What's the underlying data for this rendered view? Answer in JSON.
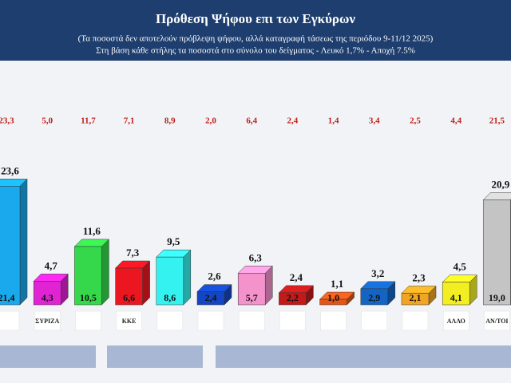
{
  "chart_data": {
    "type": "bar3d",
    "title": "Πρόθεση Ψήφου επι των Εγκύρων",
    "subtitle": "(Τα ποσοστά δεν αποτελούν πρόβλεψη ψήφου, αλλά καταγραφή τάσεως της περιόδου  9-11/12 2025)",
    "note": "Στη βάση κάθε στήλης τα ποσοστά στο σύνολο του δείγματος - Λευκό 1,7% - Αποχή 7.5%",
    "categories": [
      null,
      "ΣΥΡΙΖΑ",
      null,
      "ΚΚΕ",
      null,
      null,
      null,
      null,
      null,
      null,
      null,
      "ΑΛΛΟ",
      "ΑΝ/ΤΟΙ"
    ],
    "values": [
      23.6,
      4.7,
      11.6,
      7.3,
      9.5,
      2.6,
      6.3,
      2.4,
      1.1,
      3.2,
      2.3,
      4.5,
      20.9
    ],
    "value_labels": [
      "23,6",
      "4,7",
      "11,6",
      "7,3",
      "9,5",
      "2,6",
      "6,3",
      "2,4",
      "1,1",
      "3,2",
      "2,3",
      "4,5",
      "20,9"
    ],
    "sample_values": [
      21.4,
      4.3,
      10.5,
      6.6,
      8.6,
      2.4,
      5.7,
      2.2,
      1.0,
      2.9,
      2.1,
      4.1,
      19.0
    ],
    "sample_value_labels": [
      "21,4",
      "4,3",
      "10,5",
      "6,6",
      "8,6",
      "2,4",
      "5,7",
      "2,2",
      "1,0",
      "2,9",
      "2,1",
      "4,1",
      "19,0"
    ],
    "previous_values": [
      23.3,
      5.0,
      11.7,
      7.1,
      8.9,
      2.0,
      6.4,
      2.4,
      1.4,
      3.4,
      2.5,
      4.4,
      21.5
    ],
    "previous_value_labels": [
      "23,3",
      "5,0",
      "11,7",
      "7,1",
      "8,9",
      "2,0",
      "6,4",
      "2,4",
      "1,4",
      "3,4",
      "2,5",
      "4,4",
      "21,5"
    ],
    "colors": [
      "#19a9ec",
      "#e024d4",
      "#34d84a",
      "#ec1620",
      "#34f2f0",
      "#1446c4",
      "#f492cc",
      "#c21a1a",
      "#e2561a",
      "#1464c4",
      "#f2a424",
      "#f2ee22",
      "#c4c4c4"
    ]
  }
}
